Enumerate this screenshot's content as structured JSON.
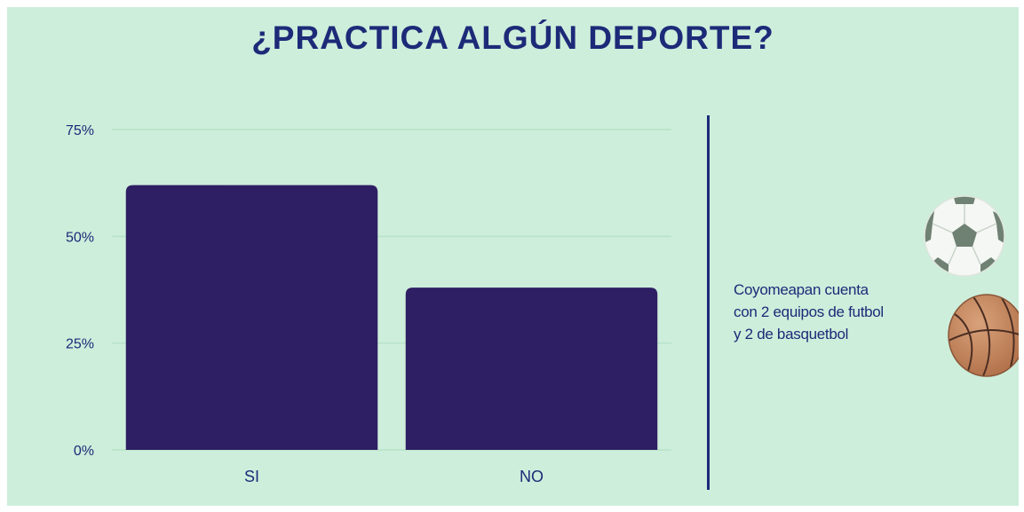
{
  "chart_data": {
    "type": "bar",
    "title": "¿PRACTICA ALGÚN DEPORTE?",
    "categories": [
      "SI",
      "NO"
    ],
    "values": [
      62,
      38
    ],
    "unit": "%",
    "ylim": [
      0,
      75
    ],
    "yticks": [
      0,
      25,
      50,
      75
    ],
    "ytick_labels": [
      "0%",
      "25%",
      "50%",
      "75%"
    ],
    "grid": true,
    "bar_color": "#2e1e63",
    "grid_color": "#b7e2c8",
    "tick_color": "#1d2a78"
  },
  "note": {
    "lines": [
      "Coyomeapan cuenta",
      "con 2 equipos de futbol",
      "y 2 de basquetbol"
    ]
  },
  "icons": [
    "soccer-ball-icon",
    "basketball-icon"
  ],
  "colors": {
    "background": "#cdeedb",
    "accent": "#1d2a78"
  }
}
